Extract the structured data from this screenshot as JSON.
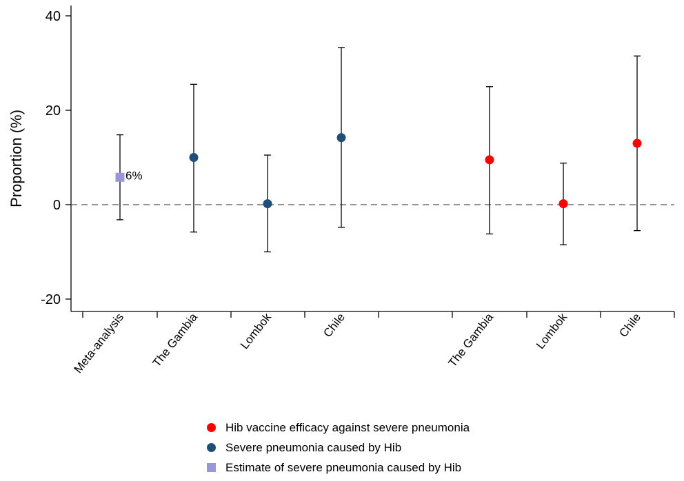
{
  "chart_data": {
    "type": "scatter",
    "title": "",
    "xlabel": "",
    "ylabel": "Proportion (%)",
    "ylim": [
      -25,
      42
    ],
    "yticks": [
      -20,
      0,
      20,
      40
    ],
    "ytick_labels": [
      "-20",
      "0",
      "20",
      "40"
    ],
    "reference_line": {
      "y": 0,
      "style": "dashed"
    },
    "grid": false,
    "legend_position": "bottom",
    "categories": [
      "Meta-analysis",
      "The Gambia",
      "Lombok",
      "Chile",
      "The Gambia",
      "Lombok",
      "Chile"
    ],
    "series": [
      {
        "name": "Hib vaccine efficacy against severe pneumonia",
        "marker": "circle",
        "color": "#ff0000",
        "points": [
          {
            "category": "The Gambia",
            "y": 9.5,
            "low": -6.2,
            "high": 25.0
          },
          {
            "category": "Lombok",
            "y": 0.2,
            "low": -8.5,
            "high": 8.8
          },
          {
            "category": "Chile",
            "y": 13.0,
            "low": -5.5,
            "high": 31.5
          }
        ]
      },
      {
        "name": "Severe pneumonia caused by Hib",
        "marker": "circle",
        "color": "#1f4e79",
        "points": [
          {
            "category": "The Gambia",
            "y": 10.0,
            "low": -5.8,
            "high": 25.5
          },
          {
            "category": "Lombok",
            "y": 0.2,
            "low": -10.0,
            "high": 10.5
          },
          {
            "category": "Chile",
            "y": 14.2,
            "low": -4.8,
            "high": 33.3
          }
        ]
      },
      {
        "name": "Estimate of severe pneumonia caused by Hib",
        "marker": "square",
        "color": "#9b96d8",
        "points": [
          {
            "category": "Meta-analysis",
            "y": 5.8,
            "low": -3.2,
            "high": 14.8,
            "label": "6%"
          }
        ]
      }
    ]
  }
}
